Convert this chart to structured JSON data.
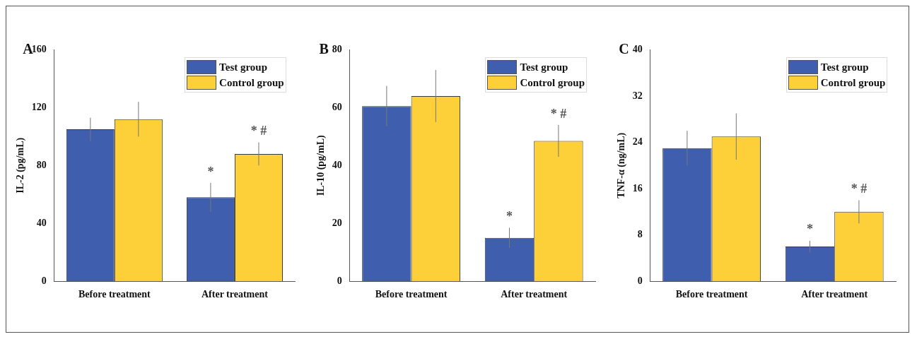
{
  "chart_data": [
    {
      "type": "bar",
      "title": "A",
      "ylabel": "IL-2 (pg/mL)",
      "categories": [
        "Before treatment",
        "After treatment"
      ],
      "series": [
        {
          "name": "Test group",
          "color": "#3f5fae",
          "values": [
            105,
            58
          ],
          "errors": [
            8,
            10
          ]
        },
        {
          "name": "Control group",
          "color": "#fdd03a",
          "values": [
            112,
            88
          ],
          "errors": [
            12,
            8
          ]
        }
      ],
      "ylim": [
        0,
        160
      ],
      "yticks": [
        0,
        40,
        80,
        120,
        160
      ],
      "grid": false,
      "legend": "top right",
      "annotations": [
        "*",
        "* #"
      ]
    },
    {
      "type": "bar",
      "title": "B",
      "ylabel": "IL-10 (pg/mL)",
      "categories": [
        "Before treatment",
        "After treatment"
      ],
      "series": [
        {
          "name": "Test group",
          "color": "#3f5fae",
          "values": [
            60.5,
            15
          ],
          "errors": [
            7,
            3.5
          ]
        },
        {
          "name": "Control group",
          "color": "#fdd03a",
          "values": [
            64,
            48.5
          ],
          "errors": [
            9,
            5.5
          ]
        }
      ],
      "ylim": [
        0,
        80
      ],
      "yticks": [
        0,
        20,
        40,
        60,
        80
      ],
      "grid": false,
      "legend": "top right",
      "annotations": [
        "*",
        "* #"
      ]
    },
    {
      "type": "bar",
      "title": "C",
      "ylabel": "TNF-α (ng/mL)",
      "categories": [
        "Before treatment",
        "After treatment"
      ],
      "series": [
        {
          "name": "Test group",
          "color": "#3f5fae",
          "values": [
            23,
            6
          ],
          "errors": [
            3,
            1
          ]
        },
        {
          "name": "Control group",
          "color": "#fdd03a",
          "values": [
            25,
            12
          ],
          "errors": [
            4,
            2
          ]
        }
      ],
      "ylim": [
        0,
        40
      ],
      "yticks": [
        0,
        8,
        16,
        24,
        32,
        40
      ],
      "grid": false,
      "legend": "top right",
      "annotations": [
        "*",
        "* #"
      ]
    }
  ]
}
